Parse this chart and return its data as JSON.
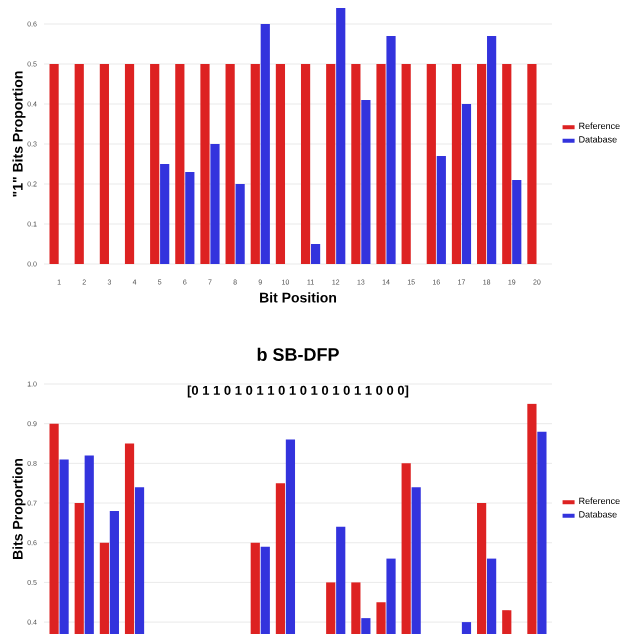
{
  "chart_data": [
    {
      "type": "bar",
      "xlabel": "Bit Position",
      "ylabel": "\"1\" Bits Proportion",
      "categories": [
        "1",
        "2",
        "3",
        "4",
        "5",
        "6",
        "7",
        "8",
        "9",
        "10",
        "11",
        "12",
        "13",
        "14",
        "15",
        "16",
        "17",
        "18",
        "19",
        "20"
      ],
      "series": [
        {
          "name": "Reference",
          "color": "#dd2222",
          "values": [
            0.5,
            0.5,
            0.5,
            0.5,
            0.5,
            0.5,
            0.5,
            0.5,
            0.5,
            0.5,
            0.5,
            0.5,
            0.5,
            0.5,
            0.5,
            0.5,
            0.5,
            0.5,
            0.5,
            0.5
          ]
        },
        {
          "name": "Database",
          "color": "#3333dd",
          "values": [
            null,
            null,
            null,
            null,
            0.25,
            0.23,
            0.3,
            0.2,
            0.6,
            null,
            0.05,
            0.64,
            0.41,
            0.57,
            null,
            0.27,
            0.4,
            0.57,
            0.21,
            null
          ]
        }
      ],
      "ylim": [
        0,
        0.65
      ],
      "yticks": [
        {
          "value": 0,
          "label": "0.0"
        },
        {
          "value": 0.1,
          "label": "0.1"
        },
        {
          "value": 0.2,
          "label": "0.2"
        },
        {
          "value": 0.3,
          "label": "0.3"
        },
        {
          "value": 0.4,
          "label": "0.4"
        },
        {
          "value": 0.5,
          "label": "0.5"
        },
        {
          "value": 0.6,
          "label": "0.6"
        }
      ],
      "grid": "y",
      "legend": "right"
    },
    {
      "type": "bar",
      "title": "**b** SB-DFP",
      "ylabel": "Bits Proportion",
      "annotations": [
        "[0 1 1 0 1 0 1 1 0 1 0 1 0 1 0 1 1 0 0 0]"
      ],
      "categories": [
        null,
        null,
        null,
        null,
        null,
        null,
        null,
        null,
        null,
        null,
        null,
        null,
        null,
        null,
        null,
        null,
        null,
        null,
        null,
        null
      ],
      "series": [
        {
          "name": "Reference",
          "color": "#dd2222",
          "values": [
            0.9,
            0.7,
            0.6,
            0.85,
            null,
            null,
            null,
            null,
            0.6,
            0.75,
            null,
            0.5,
            0.5,
            0.45,
            0.8,
            null,
            null,
            0.7,
            0.43,
            0.95
          ]
        },
        {
          "name": "Database",
          "color": "#3333dd",
          "values": [
            0.81,
            0.82,
            0.68,
            0.74,
            null,
            null,
            null,
            null,
            0.59,
            0.86,
            null,
            0.64,
            0.41,
            0.56,
            0.74,
            null,
            0.4,
            0.56,
            null,
            0.88
          ]
        }
      ],
      "ylim": [
        0.37,
        1.0
      ],
      "yticks": [
        {
          "value": 0.4,
          "label": "0.4"
        },
        {
          "value": 0.5,
          "label": "0.5"
        },
        {
          "value": 0.6,
          "label": "0.6"
        },
        {
          "value": 0.7,
          "label": "0.7"
        },
        {
          "value": 0.8,
          "label": "0.8"
        },
        {
          "value": 0.9,
          "label": "0.9"
        },
        {
          "value": 1.0,
          "label": "1.0"
        }
      ],
      "grid": "y",
      "legend": "right",
      "tick_labels": "y"
    }
  ]
}
